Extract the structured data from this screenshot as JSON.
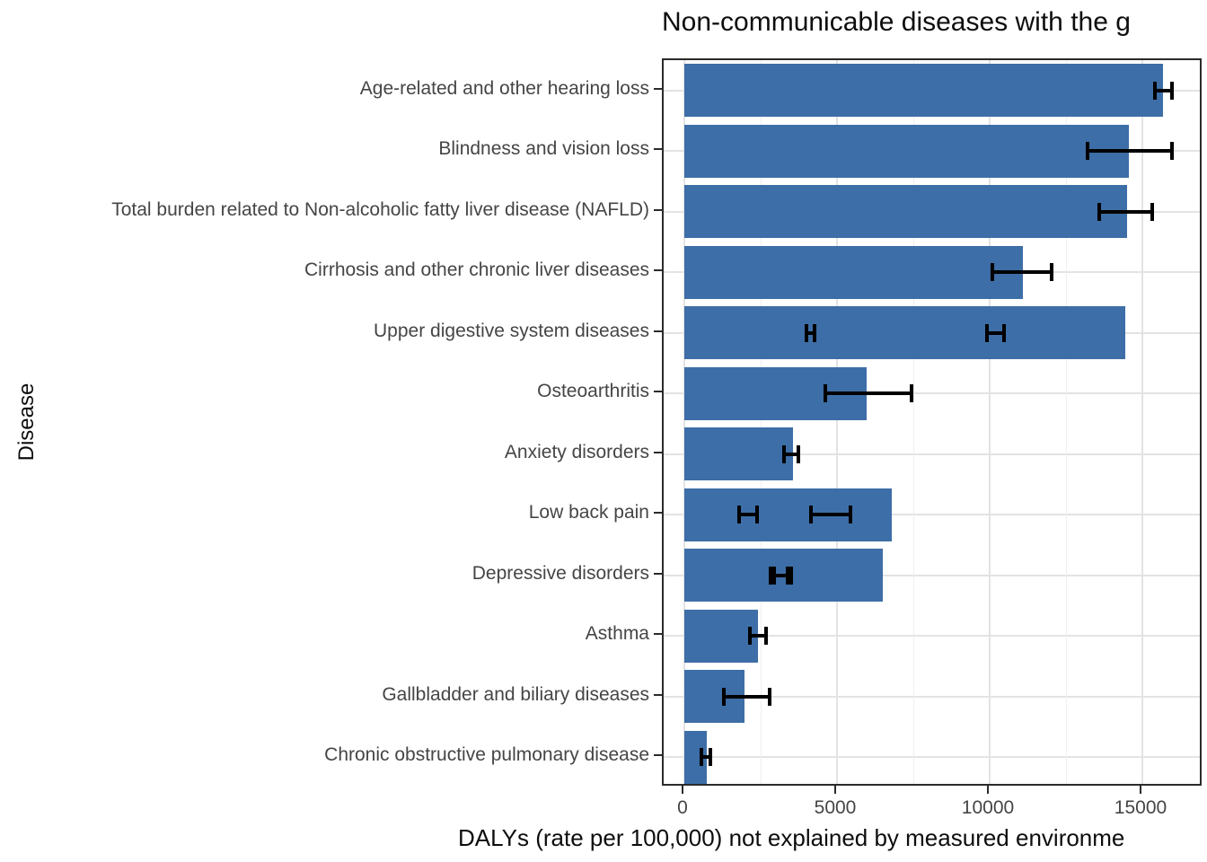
{
  "chart_data": {
    "type": "bar",
    "orientation": "horizontal",
    "title": "Non-communicable diseases with the g",
    "xlabel": "DALYs (rate per 100,000) not explained by measured environme",
    "ylabel": "Disease",
    "x_ticks": [
      0,
      5000,
      10000,
      15000
    ],
    "x_minor_gridlines": [
      2500,
      7500,
      12500
    ],
    "xlim": [
      0,
      16900
    ],
    "grid": true,
    "legend": false,
    "colors": {
      "bar_fill": "#3D6EA7",
      "error_bar": "#000000",
      "grid_major": "#E3E3E3",
      "grid_minor": "#EFEFEF",
      "panel_border": "#2B2B2B",
      "axis_text": "#454545",
      "title_text": "#0D0D0D"
    },
    "categories": [
      "Age-related and other hearing loss",
      "Blindness and vision loss",
      "Total burden related to Non-alcoholic fatty liver disease (NAFLD)",
      "Cirrhosis and other chronic liver diseases",
      "Upper digestive system diseases",
      "Osteoarthritis",
      "Anxiety disorders",
      "Low back pain",
      "Depressive disorders",
      "Asthma",
      "Gallbladder and biliary diseases",
      "Chronic obstructive pulmonary disease"
    ],
    "values": [
      15680,
      14560,
      14500,
      11090,
      14440,
      5970,
      3560,
      6790,
      6500,
      2410,
      1970,
      740
    ],
    "error_bars": [
      [
        {
          "low": 15420,
          "high": 15970
        }
      ],
      [
        {
          "low": 13210,
          "high": 15970
        }
      ],
      [
        {
          "low": 13590,
          "high": 15320
        }
      ],
      [
        {
          "low": 10090,
          "high": 12030
        }
      ],
      [
        {
          "low": 4000,
          "high": 4270
        },
        {
          "low": 9910,
          "high": 10470
        }
      ],
      [
        {
          "low": 4620,
          "high": 7440
        }
      ],
      [
        {
          "low": 3270,
          "high": 3740
        }
      ],
      [
        {
          "low": 1800,
          "high": 2380
        },
        {
          "low": 4150,
          "high": 5440
        }
      ],
      [
        {
          "low": 2820,
          "high": 3380
        },
        {
          "low": 2940,
          "high": 3500
        }
      ],
      [
        {
          "low": 2150,
          "high": 2680
        }
      ],
      [
        {
          "low": 1300,
          "high": 2800
        }
      ],
      [
        {
          "low": 560,
          "high": 860
        }
      ]
    ]
  }
}
